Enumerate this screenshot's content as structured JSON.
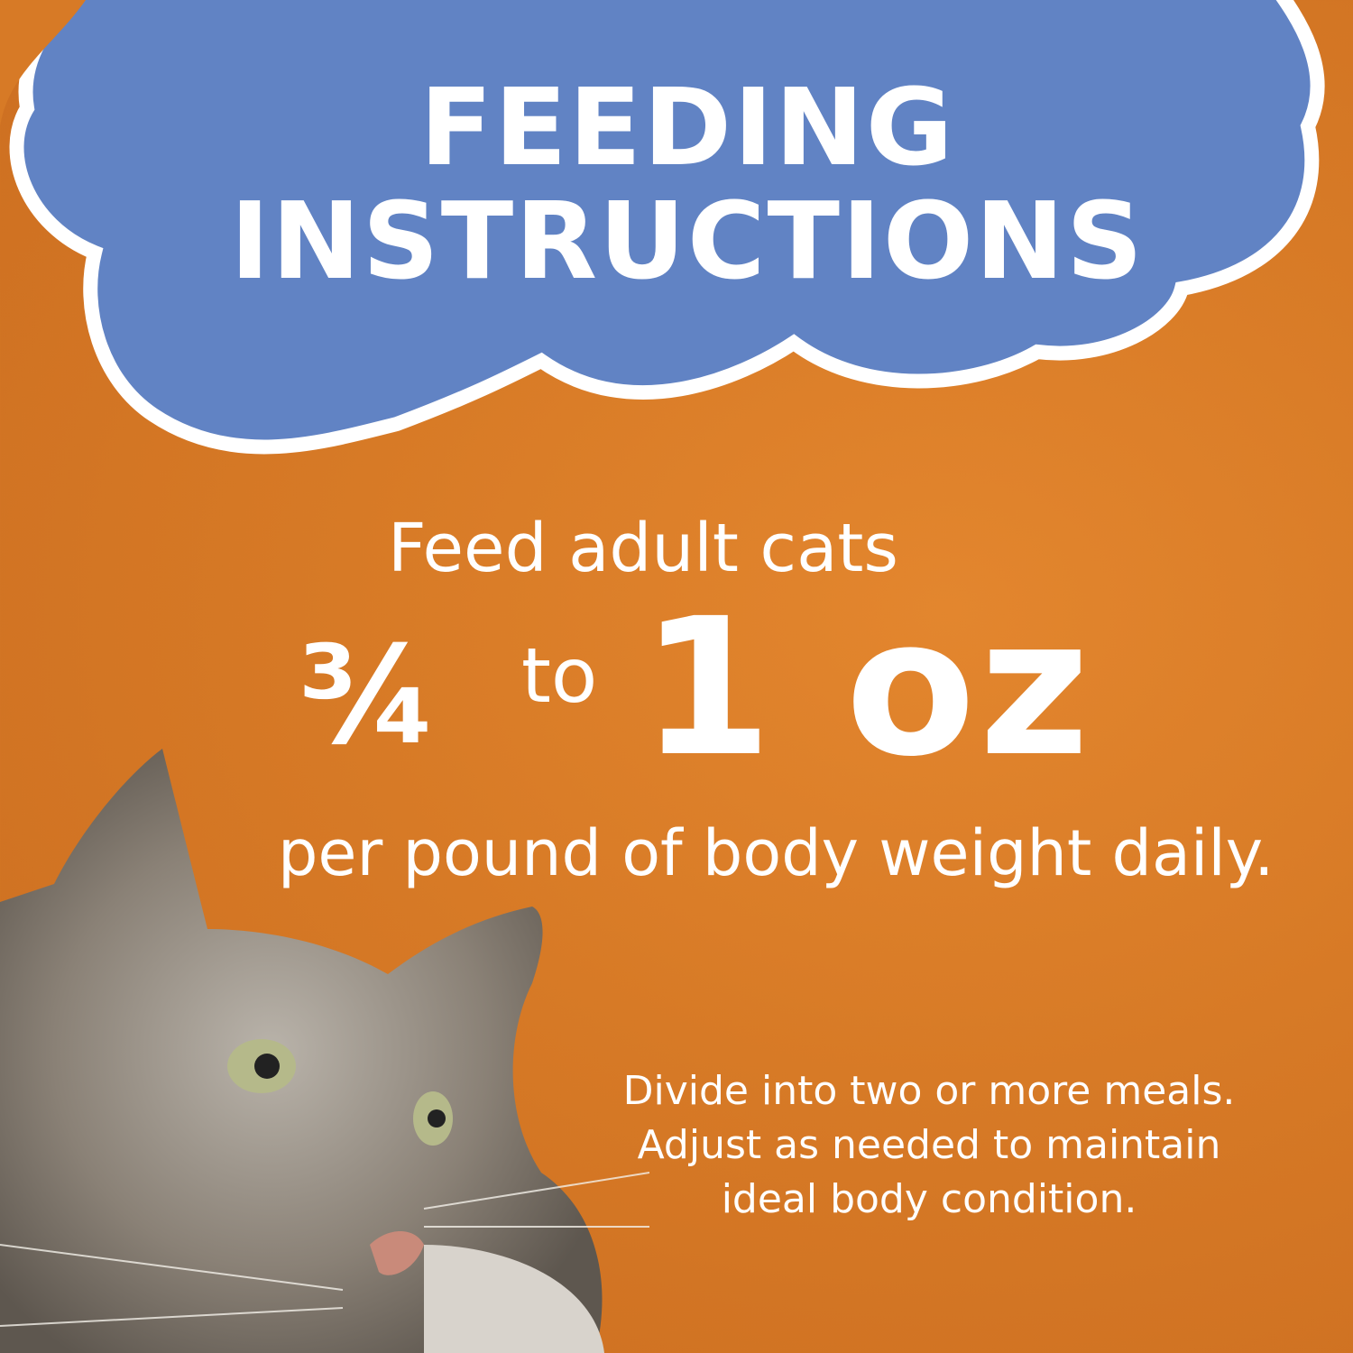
{
  "header": {
    "title_line1": "FEEDING",
    "title_line2": "INSTRUCTIONS"
  },
  "instructions": {
    "intro": "Feed adult cats",
    "fraction": "¾",
    "connector": "to",
    "amount": "1 oz",
    "basis": "per pound of body weight daily.",
    "note_line1": "Divide into two or more meals.",
    "note_line2": "Adjust as needed to maintain",
    "note_line3": "ideal body condition."
  },
  "colors": {
    "background": "#d77a26",
    "cloud": "#6183c4",
    "outline": "#ffffff"
  }
}
